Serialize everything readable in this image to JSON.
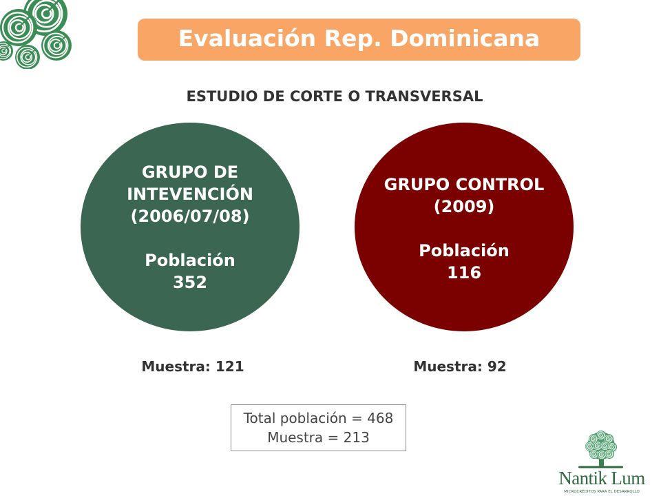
{
  "slide": {
    "title": "Evaluación Rep. Dominicana",
    "subtitle": "ESTUDIO DE CORTE O TRANSVERSAL"
  },
  "groups": [
    {
      "lines": [
        "GRUPO DE",
        "INTEVENCIÓN",
        "(2006/07/08)"
      ],
      "population_label": "Población",
      "population": "352",
      "sample": "Muestra: 121",
      "color": "#3b6651"
    },
    {
      "lines": [
        "GRUPO CONTROL",
        "(2009)"
      ],
      "population_label": "Población",
      "population": "116",
      "sample": "Muestra: 92",
      "color": "#7b0000"
    }
  ],
  "summary": {
    "total_population": "Total población = 468",
    "total_sample": "Muestra = 213"
  },
  "brand": {
    "name": "Nantik Lum",
    "tagline": "MICROCRÉDITOS PARA EL DESARROLLO",
    "logo_icon": "spiral-tree-icon",
    "corner_icon": "spiral-cluster-icon",
    "color": "#2e6b3f"
  },
  "colors": {
    "banner": "#f8a566",
    "title_text": "#ffffff",
    "body_text": "#333333"
  }
}
